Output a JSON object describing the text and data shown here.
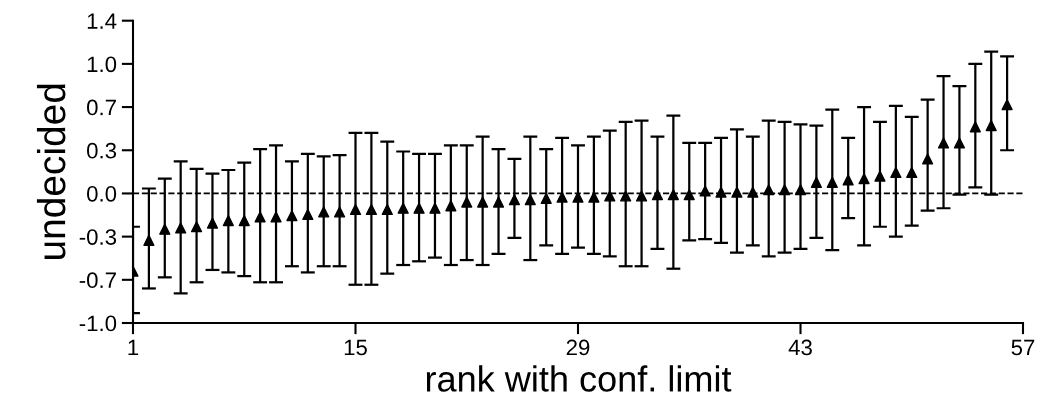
{
  "chart_data": {
    "type": "scatter",
    "xlabel": "rank with conf. limit",
    "ylabel": "undecided",
    "x": [
      1,
      2,
      3,
      4,
      5,
      6,
      7,
      8,
      9,
      10,
      11,
      12,
      13,
      14,
      15,
      16,
      17,
      18,
      19,
      20,
      21,
      22,
      23,
      24,
      25,
      26,
      27,
      28,
      29,
      30,
      31,
      32,
      33,
      34,
      35,
      36,
      37,
      38,
      39,
      40,
      41,
      42,
      43,
      44,
      45,
      46,
      47,
      48,
      49,
      50,
      51,
      52,
      53,
      54,
      55,
      56
    ],
    "series": [
      {
        "color": "#000000",
        "values": [
          -0.63,
          -0.38,
          -0.29,
          -0.28,
          -0.27,
          -0.24,
          -0.22,
          -0.22,
          -0.19,
          -0.19,
          -0.18,
          -0.17,
          -0.15,
          -0.15,
          -0.13,
          -0.13,
          -0.13,
          -0.12,
          -0.12,
          -0.12,
          -0.1,
          -0.07,
          -0.07,
          -0.07,
          -0.05,
          -0.05,
          -0.04,
          -0.03,
          -0.03,
          -0.03,
          -0.02,
          -0.02,
          -0.02,
          -0.01,
          -0.01,
          -0.01,
          0.02,
          0.01,
          0.01,
          0.01,
          0.03,
          0.03,
          0.03,
          0.09,
          0.09,
          0.11,
          0.12,
          0.14,
          0.17,
          0.17,
          0.28,
          0.41,
          0.41,
          0.54,
          0.55,
          0.72
        ],
        "errors": [
          [
            -0.97,
            -0.27
          ],
          [
            -0.77,
            0.04
          ],
          [
            -0.68,
            0.12
          ],
          [
            -0.81,
            0.26
          ],
          [
            -0.72,
            0.2
          ],
          [
            -0.62,
            0.16
          ],
          [
            -0.64,
            0.19
          ],
          [
            -0.67,
            0.25
          ],
          [
            -0.72,
            0.36
          ],
          [
            -0.72,
            0.39
          ],
          [
            -0.59,
            0.26
          ],
          [
            -0.64,
            0.32
          ],
          [
            -0.59,
            0.3
          ],
          [
            -0.59,
            0.31
          ],
          [
            -0.74,
            0.49
          ],
          [
            -0.74,
            0.49
          ],
          [
            -0.65,
            0.42
          ],
          [
            -0.58,
            0.34
          ],
          [
            -0.55,
            0.32
          ],
          [
            -0.52,
            0.32
          ],
          [
            -0.58,
            0.39
          ],
          [
            -0.54,
            0.39
          ],
          [
            -0.58,
            0.46
          ],
          [
            -0.49,
            0.36
          ],
          [
            -0.36,
            0.28
          ],
          [
            -0.54,
            0.46
          ],
          [
            -0.42,
            0.36
          ],
          [
            -0.49,
            0.45
          ],
          [
            -0.44,
            0.39
          ],
          [
            -0.49,
            0.46
          ],
          [
            -0.51,
            0.51
          ],
          [
            -0.59,
            0.58
          ],
          [
            -0.59,
            0.59
          ],
          [
            -0.45,
            0.46
          ],
          [
            -0.61,
            0.63
          ],
          [
            -0.38,
            0.41
          ],
          [
            -0.37,
            0.41
          ],
          [
            -0.4,
            0.45
          ],
          [
            -0.48,
            0.52
          ],
          [
            -0.42,
            0.46
          ],
          [
            -0.51,
            0.59
          ],
          [
            -0.48,
            0.58
          ],
          [
            -0.45,
            0.56
          ],
          [
            -0.36,
            0.55
          ],
          [
            -0.46,
            0.68
          ],
          [
            -0.2,
            0.45
          ],
          [
            -0.42,
            0.7
          ],
          [
            -0.27,
            0.58
          ],
          [
            -0.35,
            0.71
          ],
          [
            -0.26,
            0.62
          ],
          [
            -0.14,
            0.76
          ],
          [
            -0.12,
            0.95
          ],
          [
            -0.01,
            0.87
          ],
          [
            0.05,
            1.05
          ],
          [
            -0.01,
            1.15
          ],
          [
            0.35,
            1.11
          ]
        ]
      }
    ],
    "xlim": [
      1,
      57
    ],
    "xticks": [
      1,
      15,
      29,
      43,
      57
    ],
    "ylim": [
      -1.05,
      1.4
    ],
    "yticks": [
      {
        "value": -1.05,
        "label": "-1.0"
      },
      {
        "value": -0.7,
        "label": "-0.7"
      },
      {
        "value": -0.35,
        "label": "-0.3"
      },
      {
        "value": 0.0,
        "label": "0.0"
      },
      {
        "value": 0.35,
        "label": "0.3"
      },
      {
        "value": 0.7,
        "label": "0.7"
      },
      {
        "value": 1.05,
        "label": "1.0"
      },
      {
        "value": 1.4,
        "label": "1.4"
      }
    ],
    "ref_lines": [
      {
        "axis": "y",
        "value": 0,
        "color": "#000000",
        "line_style": "dashed"
      }
    ],
    "marker": "triangle",
    "grid": false,
    "legend": false
  }
}
